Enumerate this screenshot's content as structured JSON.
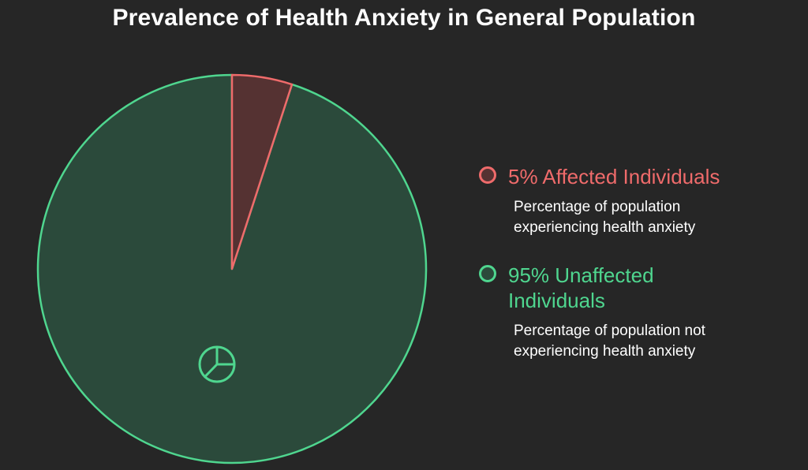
{
  "chart_data": {
    "type": "pie",
    "title": "Prevalence of Health Anxiety in General Population",
    "slices": [
      {
        "label": "5% Affected Individuals",
        "value": 5,
        "description": "Percentage of population experiencing health anxiety",
        "stroke": "#ef6b6b",
        "fill": "#553232"
      },
      {
        "label": "95% Unaffected Individuals",
        "value": 95,
        "description": "Percentage of population not experiencing health anxiety",
        "stroke": "#4fd68f",
        "fill": "#2b4a3b"
      }
    ],
    "legend_position": "right",
    "center_icon": "pie-chart-icon"
  },
  "colors": {
    "background": "#262626",
    "title": "#ffffff"
  }
}
